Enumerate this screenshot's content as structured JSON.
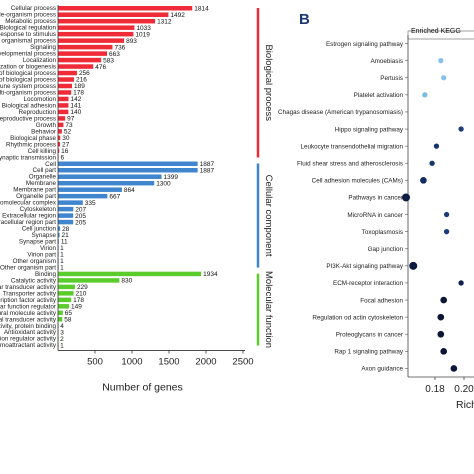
{
  "figure": {
    "panel_b_letter": "B"
  },
  "chart_data": [
    {
      "type": "bar",
      "orientation": "horizontal",
      "xlabel": "Number of genes",
      "xticks": [
        500,
        1000,
        1500,
        2000,
        2500
      ],
      "xlim": [
        0,
        2500
      ],
      "groups": [
        {
          "name": "Biological process",
          "color": "#ef2b37",
          "categories": [
            "Cellular process",
            "Single-organism process",
            "Metabolic process",
            "Biological regulation",
            "Response to stimulus",
            "Multicellular organismal process",
            "Signaling",
            "Developmental process",
            "Localization",
            "Cellular component organization or biogenesis",
            "Positive regulation of biological process",
            "Negative regulation of biological process",
            "Immune system process",
            "Multi-organism process",
            "Locomotion",
            "Biological adhesion",
            "Reproduction",
            "Reproductive process",
            "Growth",
            "Behavior",
            "Biological phase",
            "Rhythmic process",
            "Cell killing",
            "Presynaptic process involved in chemical synaptic transmission"
          ],
          "values": [
            1814,
            1492,
            1312,
            1033,
            1019,
            893,
            736,
            663,
            583,
            476,
            256,
            216,
            189,
            178,
            142,
            141,
            140,
            97,
            73,
            52,
            30,
            27,
            16,
            6
          ]
        },
        {
          "name": "Cellular component",
          "color": "#3f86cf",
          "categories": [
            "Cell",
            "Cell part",
            "Organelle",
            "Membrane",
            "Membrane part",
            "Organelle part",
            "Macromolecular complex",
            "Cytoskeleton",
            "Extracellular region",
            "Extracellular region part",
            "Cell junction",
            "Synapse",
            "Synapse part",
            "Virion",
            "Virion part",
            "Other organism",
            "Other organism part"
          ],
          "values": [
            1887,
            1887,
            1399,
            1300,
            864,
            667,
            335,
            207,
            205,
            205,
            28,
            21,
            11,
            1,
            1,
            1,
            1
          ]
        },
        {
          "name": "Molecular function",
          "color": "#5acd2c",
          "categories": [
            "Binding",
            "Catalytic activity",
            "Molecular transducer activity",
            "Transporter activity",
            "Nucleic acid binding transcription factor activity",
            "Molecular function regulator",
            "Structural molecule activity",
            "Signal transducer activity",
            "Transcription factor activity, protein binding",
            "Antioxidant activity",
            "Translation regulator activity",
            "Chemoattractant activity"
          ],
          "values": [
            1934,
            830,
            229,
            210,
            178,
            149,
            65,
            58,
            4,
            3,
            2,
            1
          ]
        }
      ]
    },
    {
      "type": "scatter",
      "title": "Enriched KEGG",
      "xlabel": "Rich",
      "xticks": [
        "0.18",
        "0.20"
      ],
      "categories": [
        "Estrogen signaling pathway",
        "Amoebiasis",
        "Pertusis",
        "Platelet activation",
        "Chagas disease (American trypanosomiasis)",
        "Hippo signaling pathway",
        "Leukocyte transendothelial migration",
        "Fluid shear stress and atherosclerosis",
        "Cell adhesion molecules (CAMs)",
        "Pathways in cancer",
        "MicroRNA in cancer",
        "Toxoplasmosis",
        "Gap junction",
        "PI3K-Akt signaling pathway",
        "ECM-receptor interaction",
        "Focal adhesion",
        "Regulation od actin cytoskeleton",
        "Proteoglycans in cancer",
        "Rap 1 signaling pathway",
        "Axon guidance"
      ],
      "points": [
        {
          "y": "Amoebiasis",
          "x": 0.184,
          "color": "#87c2e6",
          "size": 4
        },
        {
          "y": "Pertusis",
          "x": 0.186,
          "color": "#87c2e6",
          "size": 4
        },
        {
          "y": "Platelet activation",
          "x": 0.173,
          "color": "#7bbce3",
          "size": 4
        },
        {
          "y": "Hippo signaling pathway",
          "x": 0.198,
          "color": "#1f3f7a",
          "size": 4
        },
        {
          "y": "Leukocyte transendothelial migration",
          "x": 0.181,
          "color": "#16346d",
          "size": 4
        },
        {
          "y": "Fluid shear stress and atherosclerosis",
          "x": 0.178,
          "color": "#17366f",
          "size": 4
        },
        {
          "y": "Cell adhesion molecules (CAMs)",
          "x": 0.172,
          "color": "#132d62",
          "size": 5
        },
        {
          "y": "Pathways in cancer",
          "x": 0.16,
          "color": "#0e1d45",
          "size": 6
        },
        {
          "y": "MicroRNA in cancer",
          "x": 0.188,
          "color": "#1d3d78",
          "size": 4
        },
        {
          "y": "Toxoplasmosis",
          "x": 0.188,
          "color": "#1b3a75",
          "size": 4
        },
        {
          "y": "PI3K-Akt signaling pathway",
          "x": 0.165,
          "color": "#0d1a3f",
          "size": 6
        },
        {
          "y": "ECM-receptor interaction",
          "x": 0.198,
          "color": "#0f2150",
          "size": 4
        },
        {
          "y": "Focal adhesion",
          "x": 0.186,
          "color": "#0c1736",
          "size": 5
        },
        {
          "y": "Regulation od actin cytoskeleton",
          "x": 0.184,
          "color": "#0c1736",
          "size": 5
        },
        {
          "y": "Proteoglycans in cancer",
          "x": 0.184,
          "color": "#0c1736",
          "size": 5
        },
        {
          "y": "Rap 1 signaling pathway",
          "x": 0.186,
          "color": "#0c1736",
          "size": 5
        },
        {
          "y": "Axon guidance",
          "x": 0.193,
          "color": "#0c1736",
          "size": 5
        }
      ]
    }
  ]
}
